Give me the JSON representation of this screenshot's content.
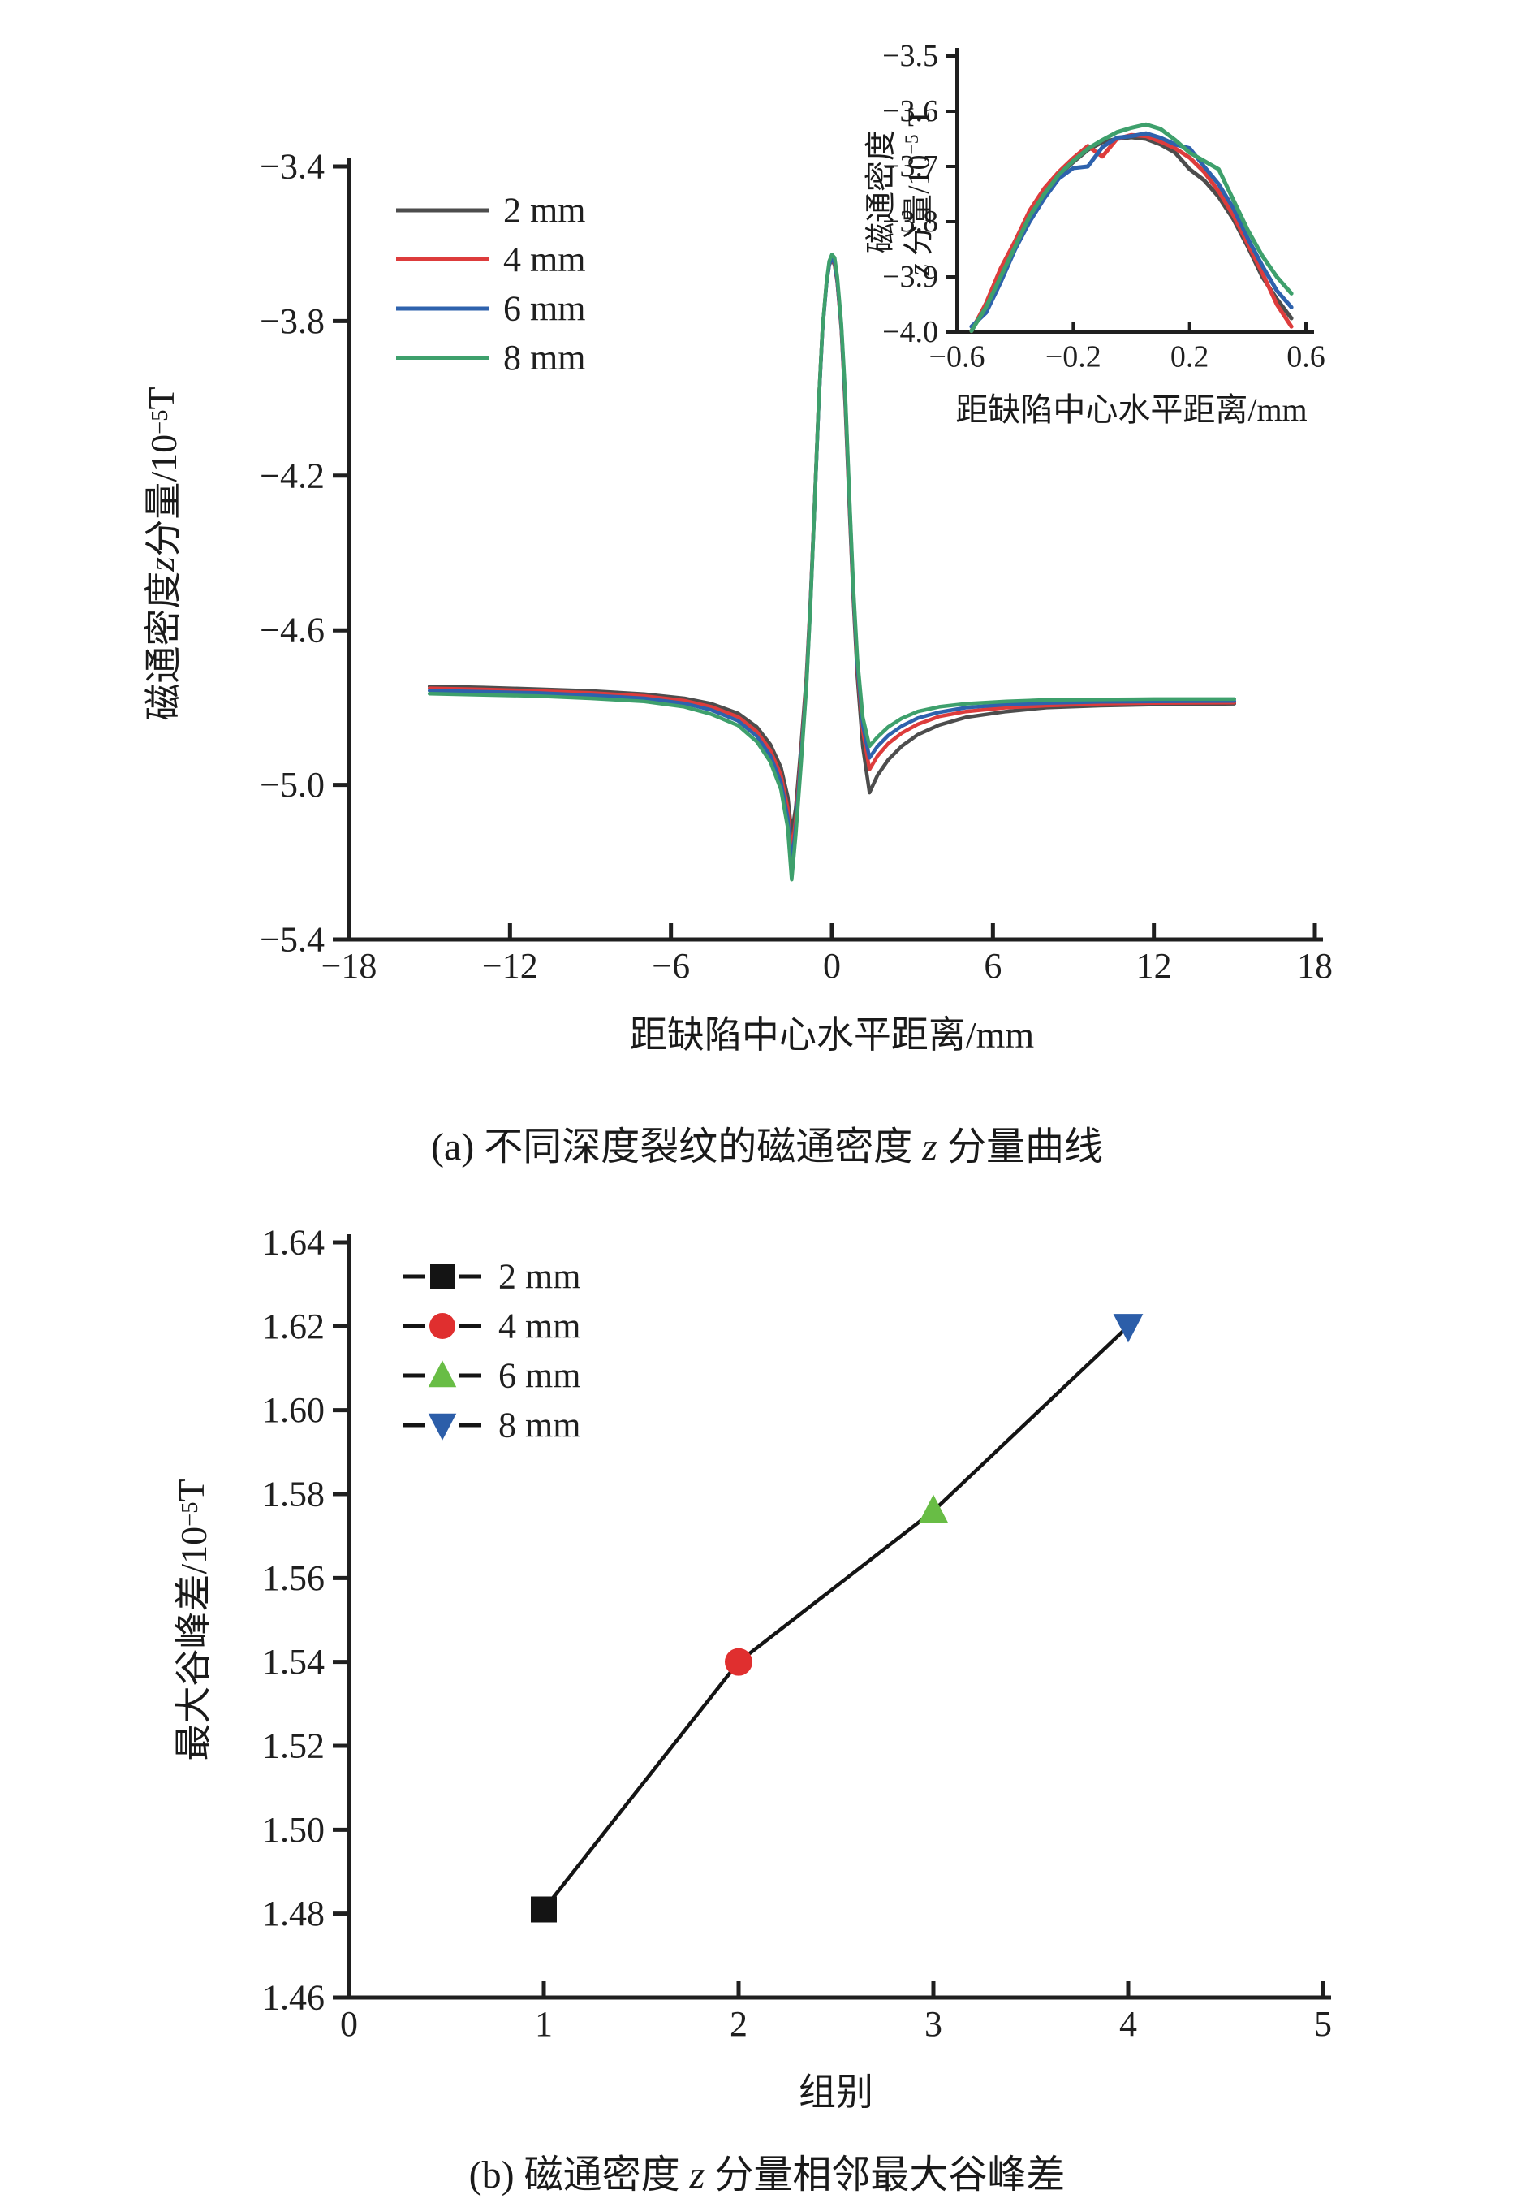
{
  "labels": {
    "a_x": "距缺陷中心水平距离/mm",
    "a_y": {
      "l1": "磁通密度 ",
      "z": "z",
      "l2": " 分量/10",
      "sup": "−5",
      "l3": " T"
    },
    "inset_x": "距缺陷中心水平距离/mm",
    "inset_y_line1": "磁通密度",
    "inset_y_line2": {
      "z": "z",
      "l2": " 分量/10",
      "sup": "−5",
      "l3": " T"
    },
    "b_x": "组别",
    "b_y": {
      "l1": "最大谷峰差/10",
      "sup": "−5",
      "l2": " T"
    },
    "caption_a": {
      "p1": "(a) 不同深度裂纹的磁通密度 ",
      "z": "z",
      "p2": " 分量曲线"
    },
    "caption_b": {
      "p1": "(b) 磁通密度 ",
      "z": "z",
      "p2": " 分量相邻最大谷峰差"
    }
  },
  "colors": {
    "axis": "#1f1f1f",
    "gray": "#4d4d4d",
    "red": "#dd3c3c",
    "blue": "#2e62ad",
    "green": "#3ea06c",
    "marker_black": "#141414",
    "marker_red": "#e02f2f",
    "marker_green": "#68bd45",
    "marker_blue": "#2c5ea9"
  },
  "chart_data": [
    {
      "id": "main",
      "type": "line",
      "xlabel": "距缺陷中心水平距离/mm",
      "ylabel": "磁通密度 z 分量/10−5 T",
      "xlim": [
        -18,
        18
      ],
      "ylim": [
        -5.4,
        -3.4
      ],
      "xticks": [
        -18,
        -12,
        -6,
        0,
        6,
        12,
        18
      ],
      "yticks": [
        -3.4,
        -3.8,
        -4.2,
        -4.6,
        -5.0,
        -5.4
      ],
      "xdec": 0,
      "ydec": 1,
      "legend_position": "upper-left-inside",
      "grid": false,
      "x": [
        -15,
        -13,
        -11,
        -9,
        -7,
        -5.5,
        -4.5,
        -3.5,
        -2.8,
        -2.3,
        -1.9,
        -1.65,
        -1.5,
        -1.35,
        -1.15,
        -0.95,
        -0.8,
        -0.65,
        -0.5,
        -0.35,
        -0.2,
        -0.1,
        0,
        0.1,
        0.2,
        0.35,
        0.5,
        0.65,
        0.8,
        0.95,
        1.15,
        1.4,
        1.7,
        2.1,
        2.6,
        3.2,
        4,
        5,
        6.5,
        8,
        10,
        12,
        15
      ],
      "series": [
        {
          "name": "2 mm",
          "color": "#4d4d4d",
          "y": [
            -4.745,
            -4.748,
            -4.752,
            -4.757,
            -4.765,
            -4.776,
            -4.79,
            -4.815,
            -4.85,
            -4.895,
            -4.955,
            -5.03,
            -5.125,
            -5.06,
            -4.9,
            -4.72,
            -4.52,
            -4.28,
            -4.02,
            -3.82,
            -3.7,
            -3.655,
            -3.64,
            -3.655,
            -3.7,
            -3.82,
            -4.02,
            -4.28,
            -4.52,
            -4.72,
            -4.9,
            -5.02,
            -4.975,
            -4.935,
            -4.9,
            -4.87,
            -4.845,
            -4.825,
            -4.81,
            -4.8,
            -4.795,
            -4.792,
            -4.79
          ]
        },
        {
          "name": "4 mm",
          "color": "#dd3c3c",
          "y": [
            -4.75,
            -4.753,
            -4.757,
            -4.762,
            -4.77,
            -4.782,
            -4.798,
            -4.824,
            -4.862,
            -4.91,
            -4.975,
            -5.06,
            -5.175,
            -5.09,
            -4.92,
            -4.73,
            -4.525,
            -4.28,
            -4.02,
            -3.82,
            -3.7,
            -3.652,
            -3.638,
            -3.652,
            -3.698,
            -3.818,
            -4.01,
            -4.27,
            -4.51,
            -4.7,
            -4.86,
            -4.96,
            -4.925,
            -4.893,
            -4.866,
            -4.843,
            -4.823,
            -4.81,
            -4.8,
            -4.795,
            -4.79,
            -4.788,
            -4.787
          ]
        },
        {
          "name": "6 mm",
          "color": "#2e62ad",
          "y": [
            -4.756,
            -4.759,
            -4.762,
            -4.768,
            -4.776,
            -4.789,
            -4.806,
            -4.834,
            -4.874,
            -4.924,
            -4.993,
            -5.085,
            -5.207,
            -5.11,
            -4.93,
            -4.74,
            -4.53,
            -4.285,
            -4.025,
            -3.822,
            -3.702,
            -3.653,
            -3.64,
            -3.648,
            -3.694,
            -3.813,
            -4.0,
            -4.26,
            -4.5,
            -4.69,
            -4.845,
            -4.93,
            -4.9,
            -4.872,
            -4.848,
            -4.827,
            -4.812,
            -4.8,
            -4.792,
            -4.788,
            -4.785,
            -4.784,
            -4.783
          ]
        },
        {
          "name": "8 mm",
          "color": "#3ea06c",
          "y": [
            -4.764,
            -4.767,
            -4.77,
            -4.776,
            -4.784,
            -4.798,
            -4.817,
            -4.846,
            -4.888,
            -4.94,
            -5.012,
            -5.11,
            -5.245,
            -5.13,
            -4.945,
            -4.745,
            -4.535,
            -4.285,
            -4.02,
            -3.818,
            -3.698,
            -3.645,
            -3.628,
            -3.636,
            -3.685,
            -3.806,
            -3.99,
            -4.25,
            -4.49,
            -4.675,
            -4.825,
            -4.9,
            -4.876,
            -4.85,
            -4.828,
            -4.81,
            -4.798,
            -4.79,
            -4.784,
            -4.78,
            -4.779,
            -4.778,
            -4.778
          ]
        }
      ]
    },
    {
      "id": "inset",
      "type": "line",
      "xlabel": "距缺陷中心水平距离/mm",
      "ylabel": "磁通密度 z 分量/10−5 T",
      "xlim": [
        -0.6,
        0.6
      ],
      "ylim": [
        -4.0,
        -3.5
      ],
      "xticks": [
        -0.6,
        -0.2,
        0.2,
        0.6
      ],
      "yticks": [
        -3.5,
        -3.6,
        -3.7,
        -3.8,
        -3.9,
        -4.0
      ],
      "xdec": 1,
      "ydec": 1,
      "grid": false,
      "x": [
        -0.55,
        -0.5,
        -0.45,
        -0.4,
        -0.35,
        -0.3,
        -0.25,
        -0.2,
        -0.15,
        -0.1,
        -0.05,
        0,
        0.05,
        0.1,
        0.15,
        0.2,
        0.25,
        0.3,
        0.35,
        0.4,
        0.45,
        0.5,
        0.55
      ],
      "series": [
        {
          "name": "2 mm",
          "color": "#4d4d4d",
          "y": [
            -3.998,
            -3.95,
            -3.895,
            -3.842,
            -3.788,
            -3.748,
            -3.715,
            -3.692,
            -3.67,
            -3.656,
            -3.65,
            -3.647,
            -3.65,
            -3.66,
            -3.675,
            -3.705,
            -3.725,
            -3.755,
            -3.795,
            -3.845,
            -3.9,
            -3.94,
            -3.975
          ]
        },
        {
          "name": "4 mm",
          "color": "#dd3c3c",
          "y": [
            -3.998,
            -3.948,
            -3.885,
            -3.835,
            -3.78,
            -3.74,
            -3.71,
            -3.685,
            -3.663,
            -3.682,
            -3.65,
            -3.643,
            -3.645,
            -3.655,
            -3.667,
            -3.684,
            -3.71,
            -3.745,
            -3.788,
            -3.84,
            -3.893,
            -3.95,
            -3.99
          ]
        },
        {
          "name": "6 mm",
          "color": "#2e62ad",
          "y": [
            -3.99,
            -3.965,
            -3.91,
            -3.85,
            -3.8,
            -3.758,
            -3.722,
            -3.703,
            -3.7,
            -3.665,
            -3.648,
            -3.645,
            -3.64,
            -3.648,
            -3.66,
            -3.667,
            -3.7,
            -3.732,
            -3.775,
            -3.83,
            -3.88,
            -3.925,
            -3.955
          ]
        },
        {
          "name": "8 mm",
          "color": "#3ea06c",
          "y": [
            -3.998,
            -3.955,
            -3.9,
            -3.845,
            -3.79,
            -3.75,
            -3.715,
            -3.69,
            -3.668,
            -3.652,
            -3.638,
            -3.63,
            -3.624,
            -3.632,
            -3.652,
            -3.675,
            -3.69,
            -3.705,
            -3.76,
            -3.815,
            -3.862,
            -3.9,
            -3.93
          ]
        }
      ]
    },
    {
      "id": "groups",
      "type": "scatter",
      "xlabel": "组别",
      "ylabel": "最大谷峰差/10−5 T",
      "xlim": [
        0,
        5
      ],
      "ylim": [
        1.46,
        1.64
      ],
      "xticks": [
        0,
        1,
        2,
        3,
        4,
        5
      ],
      "yticks": [
        1.46,
        1.48,
        1.5,
        1.52,
        1.54,
        1.56,
        1.58,
        1.6,
        1.62,
        1.64
      ],
      "xdec": 0,
      "ydec": 2,
      "grid": false,
      "line_color": "#141414",
      "x": [
        1,
        2,
        3,
        4
      ],
      "y": [
        1.481,
        1.54,
        1.576,
        1.62
      ],
      "points": [
        {
          "group": 1,
          "value": 1.481,
          "shape": "square",
          "color": "#141414",
          "label": "2 mm"
        },
        {
          "group": 2,
          "value": 1.54,
          "shape": "circle",
          "color": "#e02f2f",
          "label": "4 mm"
        },
        {
          "group": 3,
          "value": 1.576,
          "shape": "triangle-up",
          "color": "#68bd45",
          "label": "6 mm"
        },
        {
          "group": 4,
          "value": 1.62,
          "shape": "triangle-down",
          "color": "#2c5ea9",
          "label": "8 mm"
        }
      ]
    }
  ]
}
